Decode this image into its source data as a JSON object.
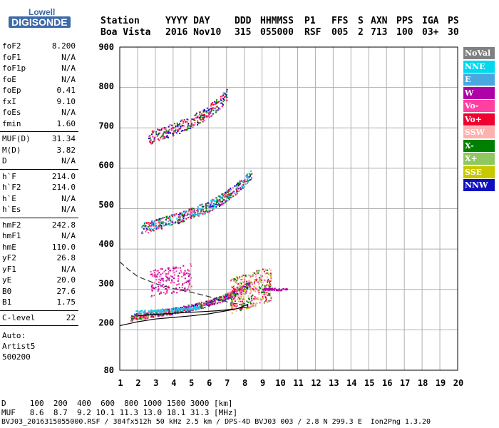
{
  "logo": {
    "top": "Lowell",
    "bottom": "DIGISONDE"
  },
  "header": {
    "row1": [
      "Station",
      "YYYY DAY",
      "DDD",
      "HHMMSS",
      "P1",
      "FFS",
      "S",
      "AXN",
      "PPS",
      "IGA",
      "PS"
    ],
    "row2": [
      "Boa Vista",
      "2016 Nov10",
      "315",
      "055000",
      "RSF",
      "005",
      "2",
      "713",
      "100",
      "03+",
      "30"
    ]
  },
  "params": {
    "group1": [
      {
        "name": "foF2",
        "value": "8.200"
      },
      {
        "name": "foF1",
        "value": "N/A"
      },
      {
        "name": "foF1p",
        "value": "N/A"
      },
      {
        "name": "foE",
        "value": "N/A"
      },
      {
        "name": "foEp",
        "value": "0.41"
      },
      {
        "name": "fxI",
        "value": "9.10"
      },
      {
        "name": "foEs",
        "value": "N/A"
      },
      {
        "name": "fmin",
        "value": "1.60"
      }
    ],
    "group2": [
      {
        "name": "MUF(D)",
        "value": "31.34"
      },
      {
        "name": "M(D)",
        "value": "3.82"
      },
      {
        "name": "D",
        "value": "N/A"
      }
    ],
    "group3": [
      {
        "name": "h`F",
        "value": "214.0"
      },
      {
        "name": "h`F2",
        "value": "214.0"
      },
      {
        "name": "h`E",
        "value": "N/A"
      },
      {
        "name": "h`Es",
        "value": "N/A"
      }
    ],
    "group4": [
      {
        "name": "hmF2",
        "value": "242.8"
      },
      {
        "name": "hmF1",
        "value": "N/A"
      },
      {
        "name": "hmE",
        "value": "110.0"
      },
      {
        "name": "yF2",
        "value": "26.8"
      },
      {
        "name": "yF1",
        "value": "N/A"
      },
      {
        "name": "yE",
        "value": "20.0"
      },
      {
        "name": "B0",
        "value": "27.6"
      },
      {
        "name": "B1",
        "value": "1.75"
      }
    ],
    "group5": [
      {
        "name": "C-level",
        "value": "22"
      }
    ],
    "auto": [
      "Auto:",
      "Artist5",
      "500200"
    ]
  },
  "legend": [
    {
      "label": "NoVal",
      "color": "#808080"
    },
    {
      "label": "NNE",
      "color": "#00d8f0"
    },
    {
      "label": "E",
      "color": "#4aa8e0"
    },
    {
      "label": "W",
      "color": "#b000a8"
    },
    {
      "label": "Vo-",
      "color": "#ff40a0"
    },
    {
      "label": "Vo+",
      "color": "#f00030"
    },
    {
      "label": "SSW",
      "color": "#ffb0b0"
    },
    {
      "label": "X-",
      "color": "#008000"
    },
    {
      "label": "X+",
      "color": "#90c860"
    },
    {
      "label": "SSE",
      "color": "#c8c800"
    },
    {
      "label": "NNW",
      "color": "#1010c0"
    }
  ],
  "footer": {
    "d_row": "D     100  200  400  600  800 1000 1500 3000 [km]",
    "muf_row": "MUF   8.6  8.7  9.2 10.1 11.3 13.0 18.1 31.3 [MHz]",
    "info": "BVJ03_2016315055000.RSF / 384fx512h 50 kHz 2.5 km / DPS-4D BVJ03 003 / 2.8 N 299.3 E  Ion2Png 1.3.20"
  },
  "chart_data": {
    "type": "scatter",
    "xlim": [
      1,
      20
    ],
    "ylim": [
      80,
      900
    ],
    "x_ticks": [
      1,
      2,
      3,
      4,
      5,
      6,
      7,
      8,
      9,
      10,
      11,
      12,
      13,
      14,
      15,
      16,
      17,
      18,
      19,
      20
    ],
    "y_ticks": [
      80,
      200,
      300,
      400,
      500,
      600,
      700,
      800,
      900
    ],
    "grid": true,
    "legend_position": "right",
    "traces": [
      {
        "name": "F2 trace (1 hop)",
        "x_start": 1.6,
        "x_end": 8.3,
        "h_start": 215,
        "h_end": 260,
        "h_curve": 40,
        "spread": 8,
        "density": 650,
        "colors": [
          "#f00030",
          "#ff40a0",
          "#008000",
          "#1010c0",
          "#b000a8",
          "#90c860"
        ]
      },
      {
        "name": "F2 trace (2 hop)",
        "x_start": 2.2,
        "x_end": 8.4,
        "h_start": 440,
        "h_end": 520,
        "h_curve": 60,
        "spread": 14,
        "density": 520,
        "colors": [
          "#f00030",
          "#ff40a0",
          "#1010c0",
          "#4aa8e0",
          "#00d8f0",
          "#008000"
        ]
      },
      {
        "name": "F2 trace (3 hop)",
        "x_start": 2.6,
        "x_end": 7.0,
        "h_start": 670,
        "h_end": 740,
        "h_curve": 40,
        "spread": 16,
        "density": 300,
        "colors": [
          "#f00030",
          "#ff40a0",
          "#008000",
          "#1010c0"
        ]
      },
      {
        "name": "W spread layer",
        "x_start": 2.7,
        "x_end": 5.0,
        "h_start": 300,
        "h_end": 320,
        "h_curve": 0,
        "spread": 35,
        "density": 180,
        "colors": [
          "#b000a8",
          "#ff40a0"
        ]
      },
      {
        "name": "Spread F",
        "x_start": 7.2,
        "x_end": 9.5,
        "h_start": 270,
        "h_end": 300,
        "h_curve": 0,
        "spread": 45,
        "density": 380,
        "colors": [
          "#f00030",
          "#ff40a0",
          "#008000",
          "#c8c800",
          "#ffb0b0",
          "#90c860"
        ]
      },
      {
        "name": "E trace",
        "x_start": 1.8,
        "x_end": 5.5,
        "h_start": 228,
        "h_end": 240,
        "h_curve": 0,
        "spread": 4,
        "density": 120,
        "colors": [
          "#4aa8e0",
          "#00d8f0"
        ]
      },
      {
        "name": "W tail",
        "x_start": 9.0,
        "x_end": 10.4,
        "h_start": 288,
        "h_end": 286,
        "h_curve": 0,
        "spread": 3,
        "density": 60,
        "colors": [
          "#b000a8"
        ]
      }
    ],
    "profile_solid": [
      [
        1.0,
        193
      ],
      [
        2.0,
        203
      ],
      [
        3.0,
        210
      ],
      [
        4.0,
        214
      ],
      [
        5.0,
        218
      ],
      [
        6.0,
        223
      ],
      [
        7.0,
        231
      ],
      [
        7.8,
        238
      ],
      [
        8.2,
        240
      ],
      [
        8.2,
        247
      ],
      [
        7.6,
        236
      ],
      [
        6.5,
        231
      ],
      [
        5.0,
        227
      ],
      [
        3.0,
        222
      ],
      [
        2.0,
        218
      ]
    ],
    "profile_dashed": [
      [
        1.0,
        355
      ],
      [
        1.5,
        335
      ],
      [
        2.0,
        318
      ],
      [
        3.0,
        300
      ],
      [
        4.0,
        287
      ],
      [
        5.0,
        278
      ],
      [
        6.0,
        267
      ],
      [
        7.0,
        254
      ],
      [
        8.0,
        244
      ]
    ]
  }
}
